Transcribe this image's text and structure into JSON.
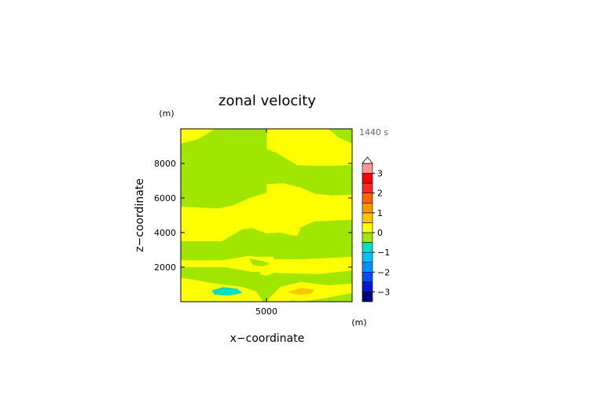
{
  "chart_data": {
    "type": "heatmap",
    "title": "zonal velocity",
    "xlabel": "x−coordinate",
    "ylabel": "z−coordinate",
    "x_unit": "(m)",
    "y_unit": "(m)",
    "time_label": "1440 s",
    "xlim": [
      0,
      10000
    ],
    "ylim": [
      0,
      10000
    ],
    "x_ticks": [
      {
        "value": 5000,
        "label": "5000"
      }
    ],
    "y_ticks": [
      {
        "value": 2000,
        "label": "2000"
      },
      {
        "value": 4000,
        "label": "4000"
      },
      {
        "value": 6000,
        "label": "6000"
      },
      {
        "value": 8000,
        "label": "8000"
      }
    ],
    "colorbar": {
      "levels": [
        -3.5,
        -3,
        -2.5,
        -2,
        -1.5,
        -1,
        -0.5,
        0,
        0.5,
        1,
        1.5,
        2,
        2.5,
        3,
        3.5
      ],
      "colors": [
        "#000080",
        "#0018d8",
        "#0050ff",
        "#0090ff",
        "#00c0ff",
        "#00e0c8",
        "#a0e600",
        "#ffff00",
        "#ffc800",
        "#ff9600",
        "#ff6400",
        "#ff2828",
        "#ff0000",
        "#ff9696"
      ],
      "tick_labels": [
        {
          "value": 3,
          "label": "3"
        },
        {
          "value": 2,
          "label": "2"
        },
        {
          "value": 1,
          "label": "1"
        },
        {
          "value": 0,
          "label": "0"
        },
        {
          "value": -1,
          "label": "−1"
        },
        {
          "value": -2,
          "label": "−2"
        },
        {
          "value": -3,
          "label": "−3"
        }
      ],
      "extend": "max"
    },
    "background_value": -0.2,
    "regions": [
      {
        "value": 0.2,
        "points": [
          [
            0,
            10000
          ],
          [
            0,
            9150
          ],
          [
            1000,
            9400
          ],
          [
            2000,
            10000
          ]
        ]
      },
      {
        "value": 0.2,
        "points": [
          [
            5000,
            10000
          ],
          [
            5000,
            8850
          ],
          [
            5600,
            8600
          ],
          [
            6800,
            7900
          ],
          [
            8400,
            7850
          ],
          [
            10000,
            7900
          ],
          [
            10000,
            9150
          ],
          [
            9200,
            9500
          ],
          [
            8600,
            10000
          ]
        ]
      },
      {
        "value": 0.2,
        "points": [
          [
            0,
            5500
          ],
          [
            2200,
            5400
          ],
          [
            3000,
            5550
          ],
          [
            4000,
            6000
          ],
          [
            5000,
            6300
          ],
          [
            5000,
            6800
          ],
          [
            6000,
            6850
          ],
          [
            7000,
            6600
          ],
          [
            7800,
            6250
          ],
          [
            8800,
            6150
          ],
          [
            10000,
            6200
          ],
          [
            10000,
            4750
          ],
          [
            9000,
            4700
          ],
          [
            7800,
            4650
          ],
          [
            7000,
            4300
          ],
          [
            6800,
            3800
          ],
          [
            6400,
            3850
          ],
          [
            5800,
            4000
          ],
          [
            5000,
            3950
          ],
          [
            4200,
            4250
          ],
          [
            3600,
            4200
          ],
          [
            2400,
            3500
          ],
          [
            0,
            3500
          ]
        ]
      },
      {
        "value": 0.2,
        "points": [
          [
            0,
            2400
          ],
          [
            2400,
            2400
          ],
          [
            4000,
            2650
          ],
          [
            5000,
            2550
          ],
          [
            5500,
            2450
          ],
          [
            7000,
            2450
          ],
          [
            8000,
            2500
          ],
          [
            10000,
            2600
          ],
          [
            10000,
            1800
          ],
          [
            8000,
            1600
          ],
          [
            6000,
            1650
          ],
          [
            5000,
            1700
          ],
          [
            4000,
            1750
          ],
          [
            2600,
            2000
          ],
          [
            0,
            2000
          ]
        ]
      },
      {
        "value": 0.2,
        "points": [
          [
            0,
            1400
          ],
          [
            2000,
            1050
          ],
          [
            3600,
            850
          ],
          [
            4400,
            600
          ],
          [
            4800,
            0
          ],
          [
            5000,
            0
          ],
          [
            5200,
            250
          ],
          [
            5800,
            850
          ],
          [
            7000,
            1150
          ],
          [
            8600,
            950
          ],
          [
            10000,
            1050
          ],
          [
            10000,
            500
          ],
          [
            8400,
            200
          ],
          [
            7000,
            0
          ],
          [
            0,
            0
          ]
        ]
      },
      {
        "value": 0.2,
        "points": [
          [
            4600,
            1600
          ],
          [
            5000,
            1500
          ],
          [
            5400,
            1650
          ],
          [
            5200,
            1900
          ],
          [
            4800,
            1900
          ]
        ]
      },
      {
        "value": 0.2,
        "points": [
          [
            4400,
            2200
          ],
          [
            5000,
            2050
          ],
          [
            5600,
            2250
          ],
          [
            5400,
            2600
          ],
          [
            4600,
            2600
          ]
        ]
      },
      {
        "value": -0.2,
        "points": [
          [
            4000,
            2500
          ],
          [
            4800,
            2350
          ],
          [
            5200,
            2200
          ],
          [
            4800,
            2050
          ],
          [
            4200,
            2100
          ]
        ]
      },
      {
        "value": -0.7,
        "points": [
          [
            1800,
            650
          ],
          [
            2500,
            850
          ],
          [
            3300,
            750
          ],
          [
            3600,
            500
          ],
          [
            2800,
            350
          ],
          [
            2000,
            400
          ]
        ]
      },
      {
        "value": 0.8,
        "points": [
          [
            6200,
            550
          ],
          [
            7000,
            800
          ],
          [
            7800,
            700
          ],
          [
            7600,
            450
          ],
          [
            6800,
            400
          ]
        ]
      },
      {
        "value": -0.7,
        "points": [
          [
            6400,
            50
          ],
          [
            7200,
            0
          ],
          [
            6400,
            0
          ]
        ]
      }
    ]
  }
}
